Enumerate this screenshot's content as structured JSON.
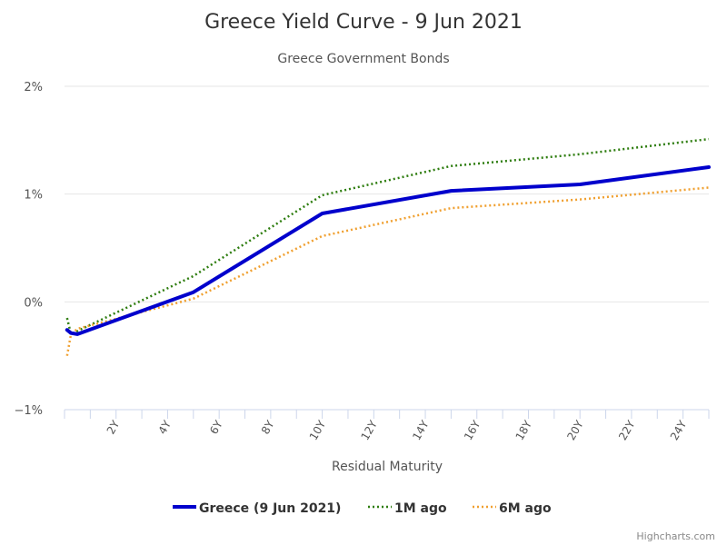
{
  "chart_data": {
    "type": "line",
    "title": "Greece Yield Curve - 9 Jun 2021",
    "subtitle": "Greece Government Bonds",
    "xlabel": "Residual Maturity",
    "ylabel": "",
    "xlim": [
      0,
      25
    ],
    "ylim": [
      -1,
      2
    ],
    "y_ticks": [
      {
        "value": 2,
        "label": "2%"
      },
      {
        "value": 1,
        "label": "1%"
      },
      {
        "value": 0,
        "label": "0%"
      },
      {
        "value": -1,
        "label": "−1%"
      }
    ],
    "x_ticks": [
      {
        "value": 2,
        "label": "2Y"
      },
      {
        "value": 4,
        "label": "4Y"
      },
      {
        "value": 6,
        "label": "6Y"
      },
      {
        "value": 8,
        "label": "8Y"
      },
      {
        "value": 10,
        "label": "10Y"
      },
      {
        "value": 12,
        "label": "12Y"
      },
      {
        "value": 14,
        "label": "14Y"
      },
      {
        "value": 16,
        "label": "16Y"
      },
      {
        "value": 18,
        "label": "18Y"
      },
      {
        "value": 20,
        "label": "20Y"
      },
      {
        "value": 22,
        "label": "22Y"
      },
      {
        "value": 24,
        "label": "24Y"
      }
    ],
    "grid": true,
    "legend": "bottom-center",
    "series": [
      {
        "name": "Greece (9 Jun 2021)",
        "color": "#0000cc",
        "style": "solid",
        "points": [
          [
            0.1,
            -0.26
          ],
          [
            0.25,
            -0.29
          ],
          [
            0.5,
            -0.3
          ],
          [
            5,
            0.09
          ],
          [
            10,
            0.82
          ],
          [
            15,
            1.03
          ],
          [
            20,
            1.09
          ],
          [
            25,
            1.25
          ]
        ]
      },
      {
        "name": "1M ago",
        "color": "#2e7d0f",
        "style": "dotted",
        "points": [
          [
            0.1,
            -0.15
          ],
          [
            0.25,
            -0.3
          ],
          [
            0.5,
            -0.27
          ],
          [
            5,
            0.24
          ],
          [
            10,
            0.99
          ],
          [
            15,
            1.26
          ],
          [
            20,
            1.37
          ],
          [
            25,
            1.51
          ]
        ]
      },
      {
        "name": "6M ago",
        "color": "#f0a030",
        "style": "dotted",
        "points": [
          [
            0.1,
            -0.5
          ],
          [
            0.25,
            -0.3
          ],
          [
            0.5,
            -0.25
          ],
          [
            5,
            0.03
          ],
          [
            10,
            0.61
          ],
          [
            15,
            0.87
          ],
          [
            20,
            0.95
          ],
          [
            25,
            1.06
          ]
        ]
      }
    ]
  },
  "credits": "Highcharts.com"
}
